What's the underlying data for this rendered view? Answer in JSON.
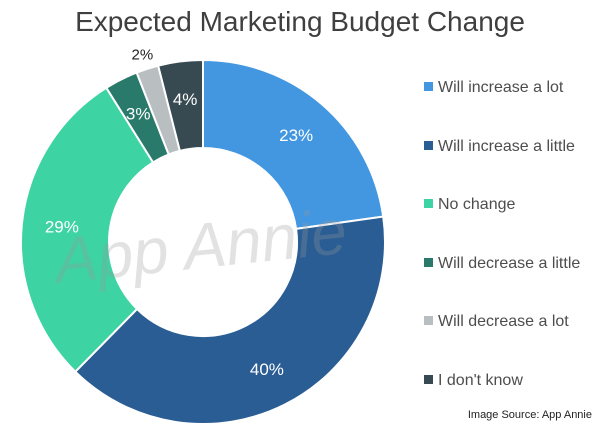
{
  "chart_data": {
    "type": "pie",
    "title": "Expected Marketing Budget Change",
    "categories": [
      "Will increase a lot",
      "Will increase a little",
      "No change",
      "Will decrease a little",
      "Will decrease a lot",
      "I don't know"
    ],
    "values": [
      23,
      40,
      29,
      3,
      2,
      4
    ],
    "value_labels": [
      "23%",
      "40%",
      "29%",
      "3%",
      "2%",
      "4%"
    ],
    "colors": [
      "#4297e0",
      "#2a5d94",
      "#3dd3a3",
      "#2a7a6c",
      "#b9bfc1",
      "#374a51"
    ],
    "legend_position": "right",
    "donut": true
  },
  "watermark": "App Annie",
  "source": "Image Source: App Annie"
}
